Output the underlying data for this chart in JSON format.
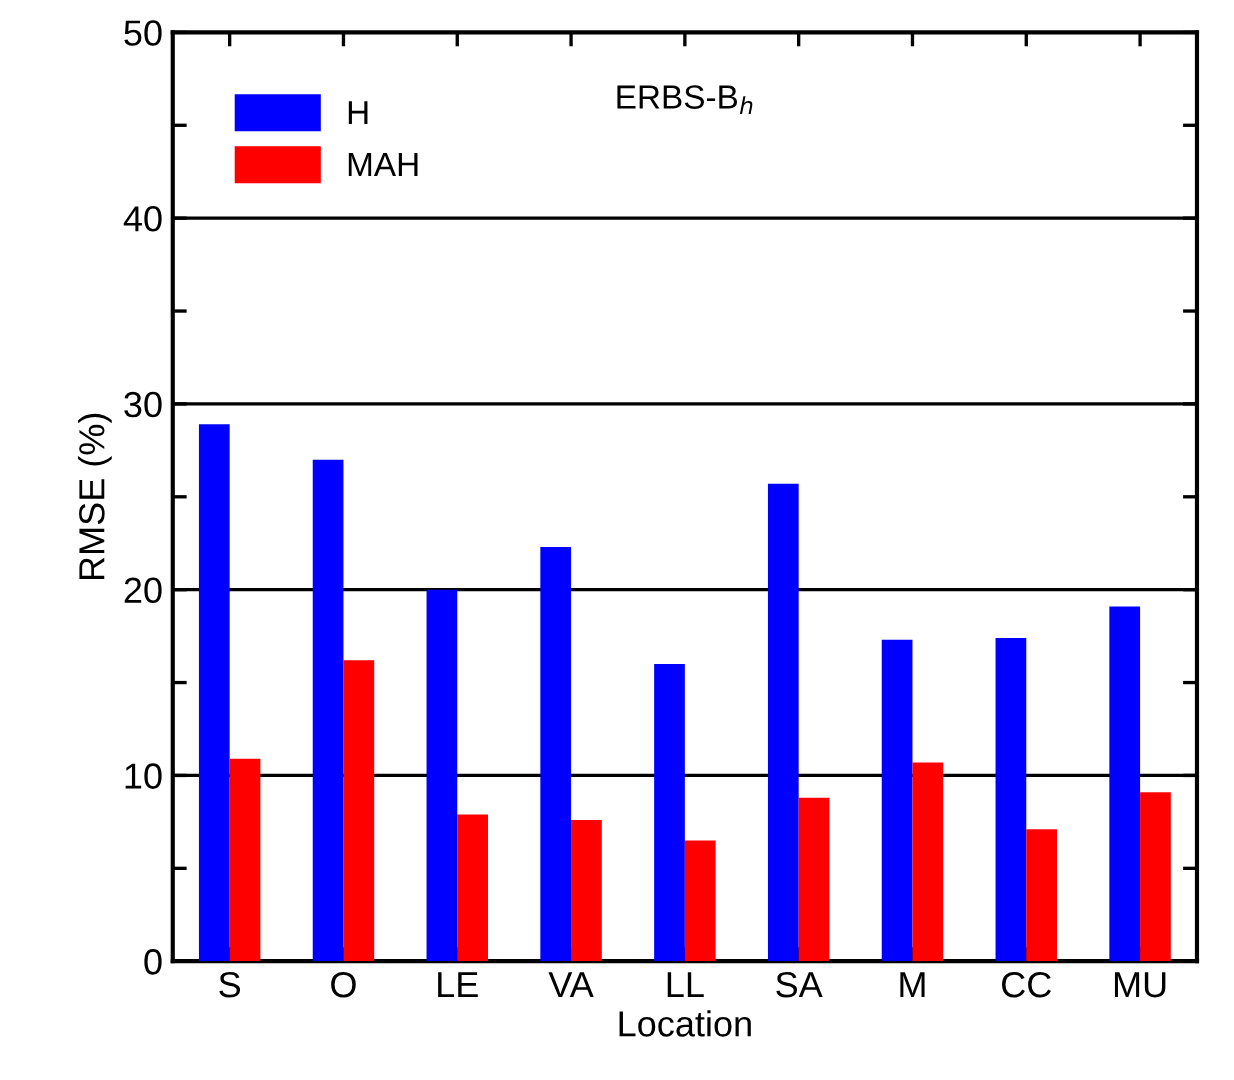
{
  "chart_data": {
    "type": "bar",
    "title": "ERBS-B$_{h}$",
    "xlabel": "Location",
    "ylabel": "RMSE (%)",
    "categories": [
      "S",
      "O",
      "LE",
      "VA",
      "LL",
      "SA",
      "M",
      "CC",
      "MU"
    ],
    "series": [
      {
        "name": "H",
        "color": "#0000ff",
        "values": [
          28.9,
          27.0,
          20.0,
          22.3,
          16.0,
          25.7,
          17.3,
          17.4,
          19.1
        ]
      },
      {
        "name": "MAH",
        "color": "#ff0000",
        "values": [
          10.9,
          16.2,
          7.9,
          7.6,
          6.5,
          8.8,
          10.7,
          7.1,
          9.1
        ]
      }
    ],
    "ylim": [
      0,
      50
    ],
    "yticks": [
      0,
      {
        "value": 5,
        "label": null
      },
      10,
      {
        "value": 15,
        "label": null
      },
      20,
      {
        "value": 25,
        "label": null
      },
      30,
      {
        "value": 35,
        "label": null
      },
      40,
      {
        "value": 45,
        "label": null
      },
      50
    ],
    "grid": "y",
    "legend": "top left"
  }
}
